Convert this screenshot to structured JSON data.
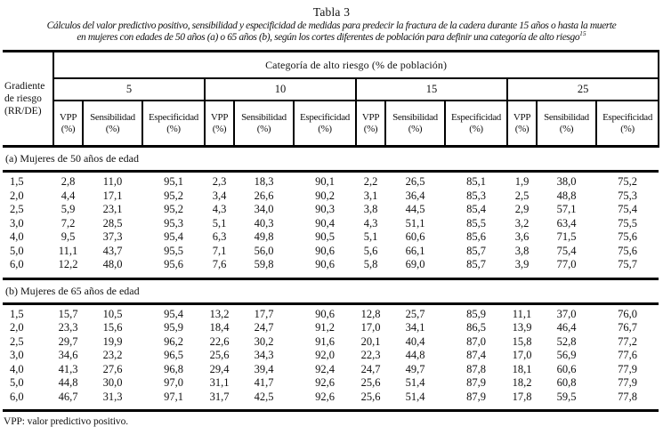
{
  "title": "Tabla 3",
  "subtitle": {
    "line1": "Cálculos del valor predictivo positivo, sensibilidad y especificidad de medidas para predecir la fractura de la cadera durante 15 años o hasta la muerte",
    "line2": "en mujeres con edades de 50 años (a) o 65 años (b), según los cortes diferentes de población para definir una categoría de alto riesgo",
    "reference_superscript": "15"
  },
  "table": {
    "corner_header_lines": [
      "Gradiente",
      "de riesgo",
      "(RR/DE)"
    ],
    "top_header": "Categoría de alto riesgo (% de población)",
    "group_headers": [
      "5",
      "10",
      "15",
      "25"
    ],
    "measure_labels": [
      "VPP",
      "Sensibilidad",
      "Especificidad"
    ],
    "percent_label": "(%)",
    "sections": [
      {
        "label": "(a) Mujeres de 50 años de edad",
        "rows": [
          [
            "1,5",
            "2,8",
            "11,0",
            "95,1",
            "2,3",
            "18,3",
            "90,1",
            "2,2",
            "26,5",
            "85,1",
            "1,9",
            "38,0",
            "75,2"
          ],
          [
            "2,0",
            "4,4",
            "17,1",
            "95,2",
            "3,4",
            "26,6",
            "90,2",
            "3,1",
            "36,4",
            "85,3",
            "2,5",
            "48,8",
            "75,3"
          ],
          [
            "2,5",
            "5,9",
            "23,1",
            "95,2",
            "4,3",
            "34,0",
            "90,3",
            "3,8",
            "44,5",
            "85,4",
            "2,9",
            "57,1",
            "75,4"
          ],
          [
            "3,0",
            "7,2",
            "28,5",
            "95,3",
            "5,1",
            "40,3",
            "90,4",
            "4,3",
            "51,1",
            "85,5",
            "3,2",
            "63,4",
            "75,5"
          ],
          [
            "4,0",
            "9,5",
            "37,3",
            "95,4",
            "6,3",
            "49,8",
            "90,5",
            "5,1",
            "60,6",
            "85,6",
            "3,6",
            "71,5",
            "75,6"
          ],
          [
            "5,0",
            "11,1",
            "43,7",
            "95,5",
            "7,1",
            "56,0",
            "90,6",
            "5,6",
            "66,1",
            "85,7",
            "3,8",
            "75,4",
            "75,6"
          ],
          [
            "6,0",
            "12,2",
            "48,0",
            "95,6",
            "7,6",
            "59,8",
            "90,6",
            "5,8",
            "69,0",
            "85,7",
            "3,9",
            "77,0",
            "75,7"
          ]
        ]
      },
      {
        "label": "(b) Mujeres de 65 años de edad",
        "rows": [
          [
            "1,5",
            "15,7",
            "10,5",
            "95,4",
            "13,2",
            "17,7",
            "90,6",
            "12,8",
            "25,7",
            "85,9",
            "11,1",
            "37,0",
            "76,0"
          ],
          [
            "2,0",
            "23,3",
            "15,6",
            "95,9",
            "18,4",
            "24,7",
            "91,2",
            "17,0",
            "34,1",
            "86,5",
            "13,9",
            "46,4",
            "76,7"
          ],
          [
            "2,5",
            "29,7",
            "19,9",
            "96,2",
            "22,6",
            "30,2",
            "91,6",
            "20,1",
            "40,4",
            "87,0",
            "15,8",
            "52,8",
            "77,2"
          ],
          [
            "3,0",
            "34,6",
            "23,2",
            "96,5",
            "25,6",
            "34,3",
            "92,0",
            "22,3",
            "44,8",
            "87,4",
            "17,0",
            "56,9",
            "77,6"
          ],
          [
            "4,0",
            "41,3",
            "27,6",
            "96,8",
            "29,4",
            "39,4",
            "92,4",
            "24,7",
            "49,7",
            "87,8",
            "18,1",
            "60,6",
            "77,9"
          ],
          [
            "5,0",
            "44,8",
            "30,0",
            "97,0",
            "31,1",
            "41,7",
            "92,6",
            "25,6",
            "51,4",
            "87,9",
            "18,2",
            "60,8",
            "77,9"
          ],
          [
            "6,0",
            "46,7",
            "31,3",
            "97,1",
            "31,7",
            "42,5",
            "92,6",
            "25,6",
            "51,4",
            "87,9",
            "17,8",
            "59,5",
            "77,8"
          ]
        ]
      }
    ]
  },
  "footnote": "VPP: valor predictivo positivo."
}
